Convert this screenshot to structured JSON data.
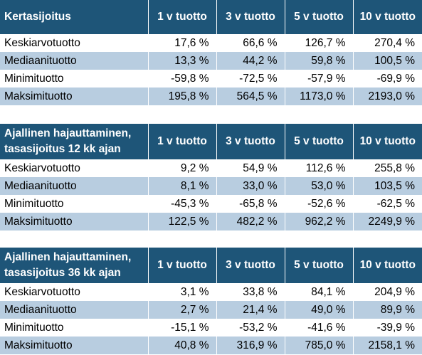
{
  "tables": [
    {
      "title": [
        "Kertasijoitus"
      ],
      "columns": [
        "1 v tuotto",
        "3 v tuotto",
        "5 v tuotto",
        "10 v tuotto"
      ],
      "rows": [
        {
          "label": "Keskiarvotuotto",
          "values": [
            "17,6 %",
            "66,6 %",
            "126,7 %",
            "270,4 %"
          ]
        },
        {
          "label": "Mediaanituotto",
          "values": [
            "13,3 %",
            "44,2 %",
            "59,8 %",
            "100,5 %"
          ]
        },
        {
          "label": "Minimituotto",
          "values": [
            "-59,8 %",
            "-72,5 %",
            "-57,9 %",
            "-69,9 %"
          ]
        },
        {
          "label": "Maksimituotto",
          "values": [
            "195,8 %",
            "564,5 %",
            "1173,0 %",
            "2193,0 %"
          ]
        }
      ]
    },
    {
      "title": [
        "Ajallinen hajauttaminen,",
        "tasasijoitus 12 kk ajan"
      ],
      "columns": [
        "1 v tuotto",
        "3 v tuotto",
        "5 v tuotto",
        "10 v tuotto"
      ],
      "rows": [
        {
          "label": "Keskiarvotuotto",
          "values": [
            "9,2 %",
            "54,9 %",
            "112,6 %",
            "255,8 %"
          ]
        },
        {
          "label": "Mediaanituotto",
          "values": [
            "8,1 %",
            "33,0 %",
            "53,0 %",
            "103,5 %"
          ]
        },
        {
          "label": "Minimituotto",
          "values": [
            "-45,3 %",
            "-65,8 %",
            "-52,6 %",
            "-62,5 %"
          ]
        },
        {
          "label": "Maksimituotto",
          "values": [
            "122,5 %",
            "482,2 %",
            "962,2 %",
            "2249,9 %"
          ]
        }
      ]
    },
    {
      "title": [
        "Ajallinen hajauttaminen,",
        "tasasijoitus 36 kk ajan"
      ],
      "columns": [
        "1 v tuotto",
        "3 v tuotto",
        "5 v tuotto",
        "10 v tuotto"
      ],
      "rows": [
        {
          "label": "Keskiarvotuotto",
          "values": [
            "3,1 %",
            "33,8 %",
            "84,1 %",
            "204,9 %"
          ]
        },
        {
          "label": "Mediaanituotto",
          "values": [
            "2,7 %",
            "21,4 %",
            "49,0 %",
            "89,9 %"
          ]
        },
        {
          "label": "Minimituotto",
          "values": [
            "-15,1 %",
            "-53,2 %",
            "-41,6 %",
            "-39,9 %"
          ]
        },
        {
          "label": "Maksimituotto",
          "values": [
            "40,8 %",
            "316,9 %",
            "785,0 %",
            "2158,1 %"
          ]
        }
      ]
    }
  ],
  "colors": {
    "header_bg": "#1e5578",
    "header_text": "#ffffff",
    "alt_row_bg": "#b8cde0"
  }
}
